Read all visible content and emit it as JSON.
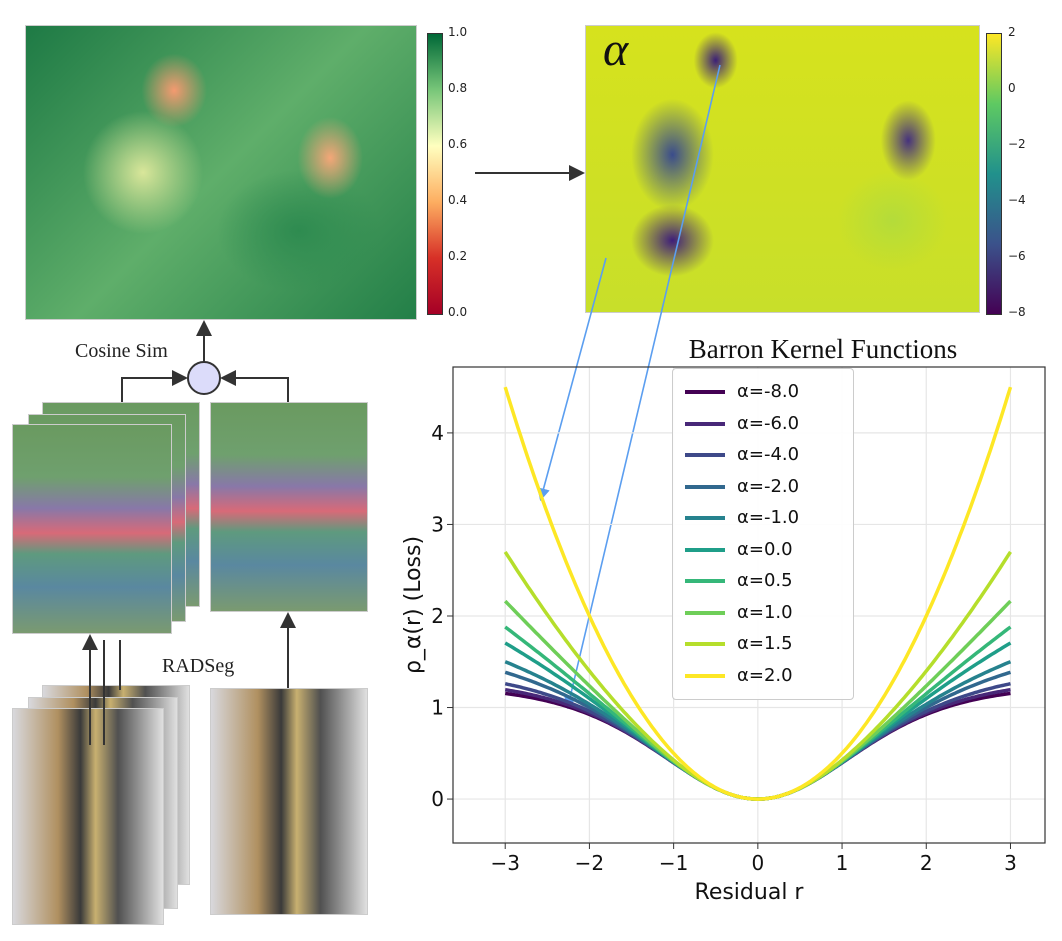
{
  "labels": {
    "cosine_sim": "Cosine Sim",
    "radseg": "RADSeg",
    "alpha_symbol": "α"
  },
  "colorbar_similarity": {
    "ticks": [
      "1.0",
      "0.8",
      "0.6",
      "0.4",
      "0.2",
      "0.0"
    ],
    "colors": [
      "#006837",
      "#78c679",
      "#ffffbf",
      "#fdae61",
      "#d73027",
      "#a50026"
    ]
  },
  "colorbar_alpha": {
    "ticks": [
      "2",
      "0",
      "−2",
      "−4",
      "−6",
      "−8"
    ],
    "colors": [
      "#fde725",
      "#5ec962",
      "#21918c",
      "#3b528b",
      "#440154"
    ]
  },
  "chart_data": {
    "type": "line",
    "title": "Barron Kernel Functions",
    "xlabel": "Residual r",
    "ylabel": "ρ_α(r) (Loss)",
    "function": "barron_general_c1",
    "x_range": [
      -3,
      3
    ],
    "xlim": [
      -3.62,
      3.41
    ],
    "ylim": [
      -0.48,
      4.72
    ],
    "xticks": [
      "-3",
      "-2",
      "-1",
      "0",
      "1",
      "2",
      "3"
    ],
    "xtick_values": [
      -3,
      -2,
      -1,
      0,
      1,
      2,
      3
    ],
    "yticks": [
      "0",
      "1",
      "2",
      "3",
      "4"
    ],
    "ytick_values": [
      0,
      1,
      2,
      3,
      4
    ],
    "grid": true,
    "legend_placement": "top-center",
    "series": [
      {
        "name": "α=-8.0",
        "alpha": -8.0,
        "color": "#440154"
      },
      {
        "name": "α=-6.0",
        "alpha": -6.0,
        "color": "#482878"
      },
      {
        "name": "α=-4.0",
        "alpha": -4.0,
        "color": "#3e4989"
      },
      {
        "name": "α=-2.0",
        "alpha": -2.0,
        "color": "#31688e"
      },
      {
        "name": "α=-1.0",
        "alpha": -1.0,
        "color": "#26828e"
      },
      {
        "name": "α=0.0",
        "alpha": 0.0,
        "color": "#1f9e89"
      },
      {
        "name": "α=0.5",
        "alpha": 0.5,
        "color": "#35b779"
      },
      {
        "name": "α=1.0",
        "alpha": 1.0,
        "color": "#6ece58"
      },
      {
        "name": "α=1.5",
        "alpha": 1.5,
        "color": "#b5de2b"
      },
      {
        "name": "α=2.0",
        "alpha": 2.0,
        "color": "#fde725"
      }
    ]
  }
}
